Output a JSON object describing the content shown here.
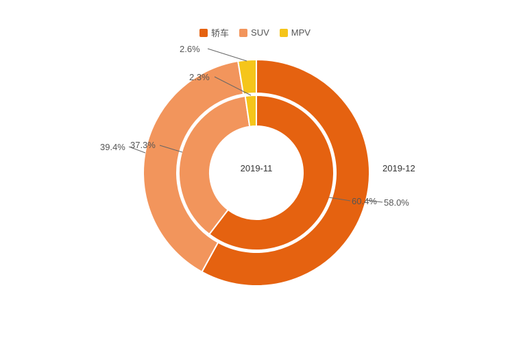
{
  "chart_data": {
    "type": "pie",
    "variant": "nested-donut",
    "title": "",
    "categories": [
      "轿车",
      "SUV",
      "MPV"
    ],
    "category_ids": [
      "sedan",
      "suv",
      "mpv"
    ],
    "colors": [
      "#e56210",
      "#f2955c",
      "#f5c51a"
    ],
    "series": [
      {
        "name": "2019-11",
        "ring": "inner",
        "values": [
          60.4,
          37.3,
          2.3
        ],
        "labels": [
          "60.4%",
          "37.3%",
          "2.3%"
        ]
      },
      {
        "name": "2019-12",
        "ring": "outer",
        "values": [
          58.0,
          39.4,
          2.6
        ],
        "labels": [
          "58.0%",
          "39.4%",
          "2.6%"
        ]
      }
    ],
    "legend_position": "top-center",
    "background": "#ffffff",
    "start_angle_deg": 0,
    "direction": "clockwise"
  }
}
